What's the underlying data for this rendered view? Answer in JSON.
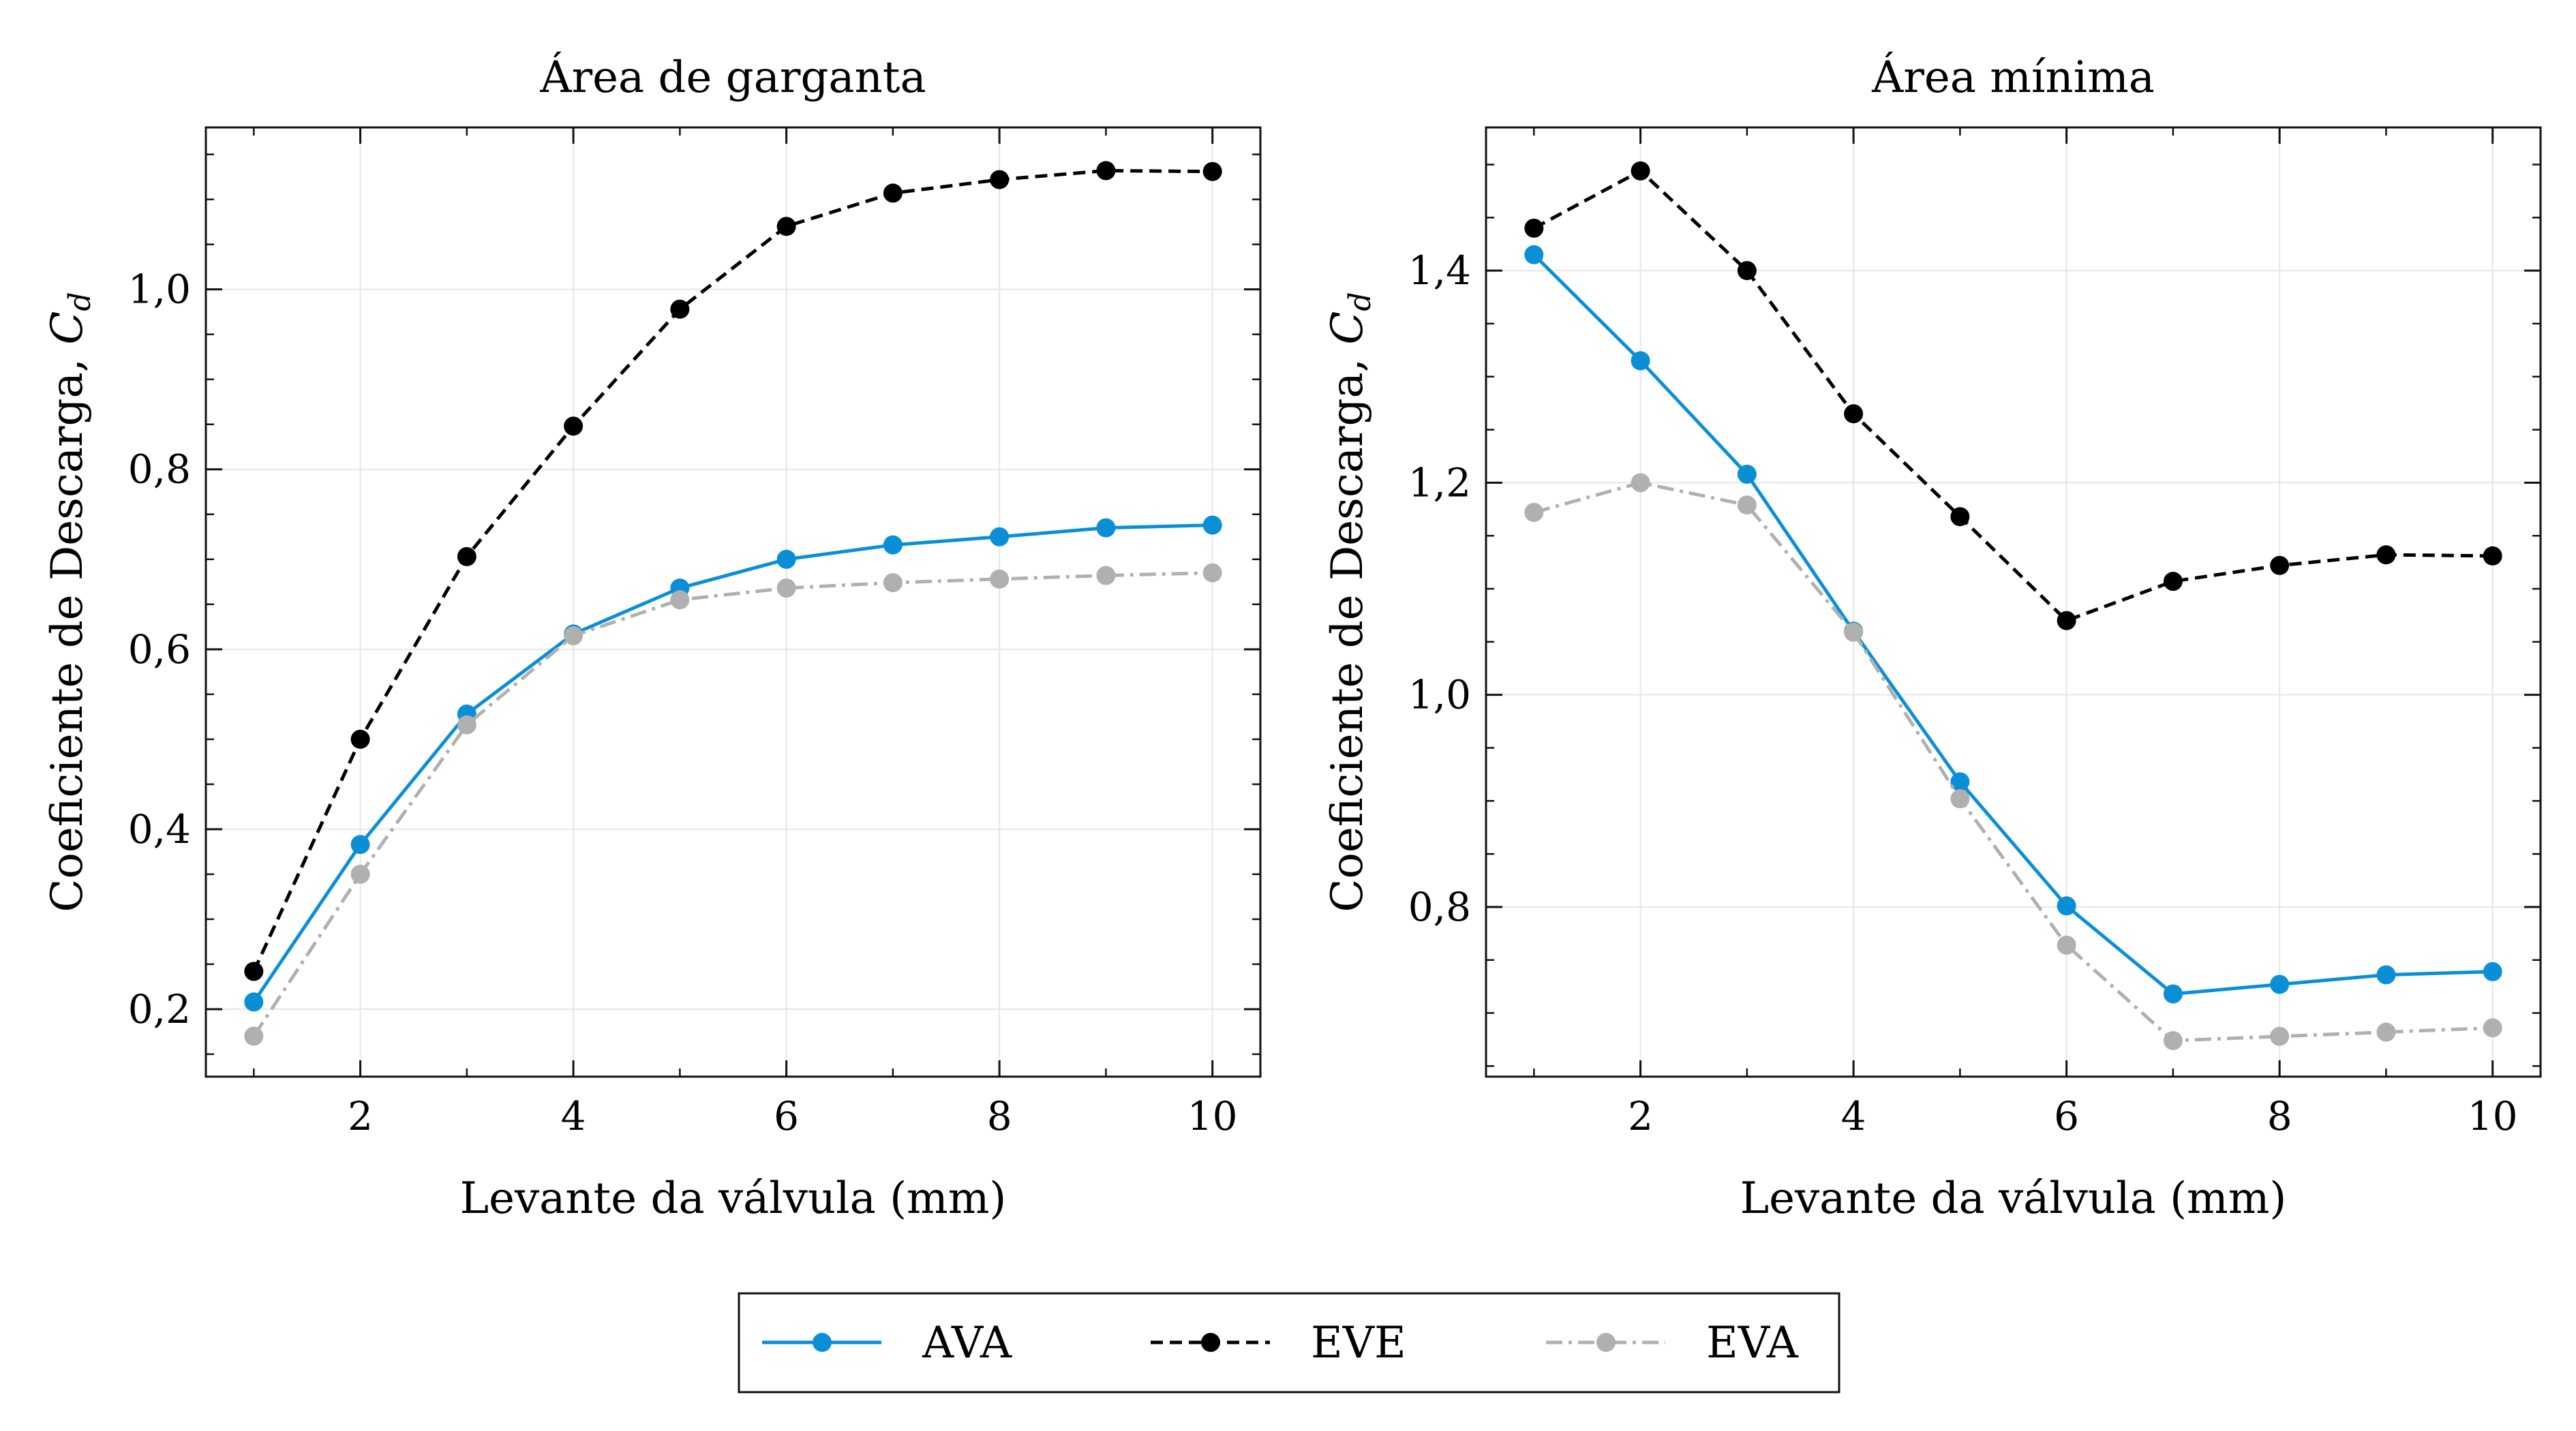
{
  "figure": {
    "legend": [
      {
        "label": "AVA",
        "color": "#0a8fd6",
        "dash": "solid"
      },
      {
        "label": "EVE",
        "color": "#000000",
        "dash": "dashed"
      },
      {
        "label": "EVA",
        "color": "#b0b0b0",
        "dash": "dashdot"
      }
    ]
  },
  "chart_data": [
    {
      "type": "line",
      "title": "Área de garganta",
      "xlabel": "Levante da válvula (mm)",
      "ylabel": "Coeficiente de Descarga, C_d",
      "xlim": [
        0.55,
        10.45
      ],
      "ylim": [
        0.125,
        1.18
      ],
      "xticks": [
        2,
        4,
        6,
        8,
        10
      ],
      "xtick_labels": [
        "2",
        "4",
        "6",
        "8",
        "10"
      ],
      "yticks": [
        0.2,
        0.4,
        0.6,
        0.8,
        1.0
      ],
      "ytick_labels": [
        "0,2",
        "0,4",
        "0,6",
        "0,8",
        "1,0"
      ],
      "grid": true,
      "x": [
        1,
        2,
        3,
        4,
        5,
        6,
        7,
        8,
        9,
        10
      ],
      "series": [
        {
          "name": "AVA",
          "color": "#0a8fd6",
          "dash": "solid",
          "values": [
            0.208,
            0.383,
            0.528,
            0.617,
            0.668,
            0.7,
            0.716,
            0.725,
            0.735,
            0.738
          ]
        },
        {
          "name": "EVE",
          "color": "#000000",
          "dash": "dashed",
          "values": [
            0.242,
            0.5,
            0.703,
            0.848,
            0.978,
            1.07,
            1.107,
            1.122,
            1.132,
            1.131
          ]
        },
        {
          "name": "EVA",
          "color": "#b0b0b0",
          "dash": "dashdot",
          "values": [
            0.17,
            0.35,
            0.516,
            0.615,
            0.655,
            0.668,
            0.674,
            0.678,
            0.682,
            0.685
          ]
        }
      ]
    },
    {
      "type": "line",
      "title": "Área mínima",
      "xlabel": "Levante da válvula (mm)",
      "ylabel": "Coeficiente de Descarga, C_d",
      "xlim": [
        0.55,
        10.45
      ],
      "ylim": [
        0.64,
        1.535
      ],
      "xticks": [
        2,
        4,
        6,
        8,
        10
      ],
      "xtick_labels": [
        "2",
        "4",
        "6",
        "8",
        "10"
      ],
      "yticks": [
        0.8,
        1.0,
        1.2,
        1.4
      ],
      "ytick_labels": [
        "0,8",
        "1,0",
        "1,2",
        "1,4"
      ],
      "grid": true,
      "x": [
        1,
        2,
        3,
        4,
        5,
        6,
        7,
        8,
        9,
        10
      ],
      "series": [
        {
          "name": "AVA",
          "color": "#0a8fd6",
          "dash": "solid",
          "values": [
            1.415,
            1.315,
            1.208,
            1.06,
            0.918,
            0.801,
            0.718,
            0.727,
            0.736,
            0.739
          ]
        },
        {
          "name": "EVE",
          "color": "#000000",
          "dash": "dashed",
          "values": [
            1.44,
            1.494,
            1.4,
            1.265,
            1.168,
            1.07,
            1.107,
            1.122,
            1.132,
            1.131
          ]
        },
        {
          "name": "EVA",
          "color": "#b0b0b0",
          "dash": "dashdot",
          "values": [
            1.172,
            1.2,
            1.179,
            1.059,
            0.902,
            0.764,
            0.674,
            0.678,
            0.682,
            0.686
          ]
        }
      ]
    }
  ]
}
